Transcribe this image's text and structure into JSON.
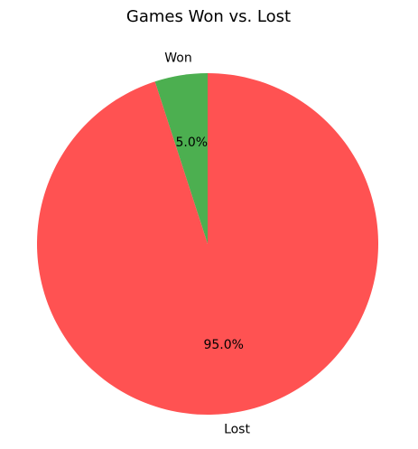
{
  "chart_data": {
    "type": "pie",
    "title": "Games Won vs. Lost",
    "categories": [
      "Won",
      "Lost"
    ],
    "values": [
      5.0,
      95.0
    ],
    "labels": [
      "Won",
      "Lost"
    ],
    "percent_labels": [
      "5.0%",
      "95.0%"
    ],
    "colors": [
      "#4caf50",
      "#ff5252"
    ],
    "start_angle_deg": 90,
    "direction": "counterclockwise",
    "legend": "none"
  }
}
